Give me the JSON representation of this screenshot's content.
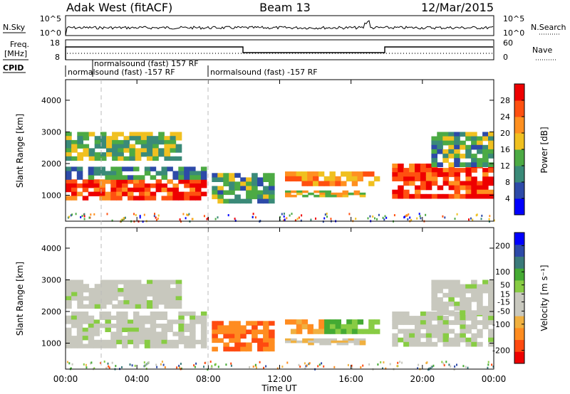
{
  "header": {
    "station": "Adak West (fitACF)",
    "beam": "Beam 13",
    "date": "12/Mar/2015"
  },
  "sky_panel": {
    "left_label": "N.Sky",
    "left_ticks": [
      "10^5",
      "10^0"
    ],
    "right_label": "N.Search",
    "right_ticks": [
      "10^5",
      "10^0"
    ]
  },
  "freq_panel": {
    "left_label_1": "Freq.",
    "left_label_2": "[MHz]",
    "left_ticks": [
      "18",
      "8"
    ],
    "right_label": "Nave",
    "right_ticks": [
      "60",
      "0"
    ]
  },
  "cpid": {
    "label": "CPID",
    "entries": [
      {
        "text": "normalsound (fast) 157 RF",
        "start_hour": 1.9
      },
      {
        "text": "normalsound (fast) -157 RF",
        "start_hour": 0.0
      },
      {
        "text": "normalsound (fast) -157 RF",
        "start_hour": 8.0
      }
    ]
  },
  "colors": {
    "power_scale": [
      "#0000ff",
      "#2d4aa8",
      "#3a8a78",
      "#4caa44",
      "#f0c020",
      "#ff9020",
      "#ff5010",
      "#ee0000"
    ],
    "velocity_scale": [
      "#ee0000",
      "#ff4a10",
      "#ff8c20",
      "#f0b040",
      "#c8c8be",
      "#c8c8be",
      "#88cc44",
      "#44aa33",
      "#3a7a7a",
      "#2d4aa8",
      "#0000ff"
    ],
    "ground_scatter": "#c8c8be"
  },
  "chart_data": [
    {
      "type": "heatmap",
      "name": "Power",
      "ylabel": "Slant Range [km]",
      "yticks": [
        1000,
        2000,
        3000,
        4000
      ],
      "ylim": [
        180,
        4650
      ],
      "colorbar_label": "Power [dB]",
      "colorbar_ticks": [
        4,
        8,
        12,
        16,
        20,
        24,
        28
      ],
      "colorbar_range": [
        0,
        32
      ],
      "scatter_regions": [
        {
          "t0": 0.0,
          "t1": 7.9,
          "r0": 850,
          "r1": 1500,
          "value": 28
        },
        {
          "t0": 0.0,
          "t1": 7.9,
          "r0": 1500,
          "r1": 1900,
          "value": 10
        },
        {
          "t0": 0.0,
          "t1": 6.5,
          "r0": 2100,
          "r1": 3000,
          "value": 14
        },
        {
          "t0": 8.2,
          "t1": 11.7,
          "r0": 750,
          "r1": 1700,
          "value": 12
        },
        {
          "t0": 12.3,
          "t1": 17.6,
          "r0": 1300,
          "r1": 1750,
          "value": 22
        },
        {
          "t0": 12.3,
          "t1": 16.8,
          "r0": 950,
          "r1": 1150,
          "value": 18
        },
        {
          "t0": 18.3,
          "t1": 24.0,
          "r0": 900,
          "r1": 2000,
          "value": 28
        },
        {
          "t0": 20.5,
          "t1": 24.0,
          "r0": 1900,
          "r1": 3000,
          "value": 12
        }
      ]
    },
    {
      "type": "heatmap",
      "name": "Velocity",
      "ylabel": "Slant Range [km]",
      "yticks": [
        1000,
        2000,
        3000,
        4000
      ],
      "ylim": [
        180,
        4650
      ],
      "xlabel": "Time UT",
      "xticks": [
        "00:00",
        "04:00",
        "08:00",
        "12:00",
        "16:00",
        "20:00",
        "00:00"
      ],
      "xlim_hours": [
        0,
        24
      ],
      "colorbar_label": "Velocity [m s⁻¹]",
      "colorbar_ticks": [
        -200,
        -100,
        -50,
        -15,
        15,
        50,
        100,
        200
      ],
      "colorbar_range": [
        -250,
        250
      ],
      "scatter_regions": [
        {
          "t0": 0.0,
          "t1": 7.9,
          "r0": 850,
          "r1": 2000,
          "value": 0
        },
        {
          "t0": 0.0,
          "t1": 6.5,
          "r0": 2100,
          "r1": 3000,
          "value": 0
        },
        {
          "t0": 8.2,
          "t1": 11.7,
          "r0": 750,
          "r1": 1700,
          "value": -150
        },
        {
          "t0": 12.3,
          "t1": 14.5,
          "r0": 1300,
          "r1": 1750,
          "value": -120
        },
        {
          "t0": 14.5,
          "t1": 17.6,
          "r0": 1300,
          "r1": 1750,
          "value": 60
        },
        {
          "t0": 12.3,
          "t1": 16.8,
          "r0": 950,
          "r1": 1150,
          "value": -60
        },
        {
          "t0": 18.3,
          "t1": 24.0,
          "r0": 900,
          "r1": 2000,
          "value": 0
        },
        {
          "t0": 20.5,
          "t1": 24.0,
          "r0": 1900,
          "r1": 3000,
          "value": 0
        }
      ]
    }
  ]
}
